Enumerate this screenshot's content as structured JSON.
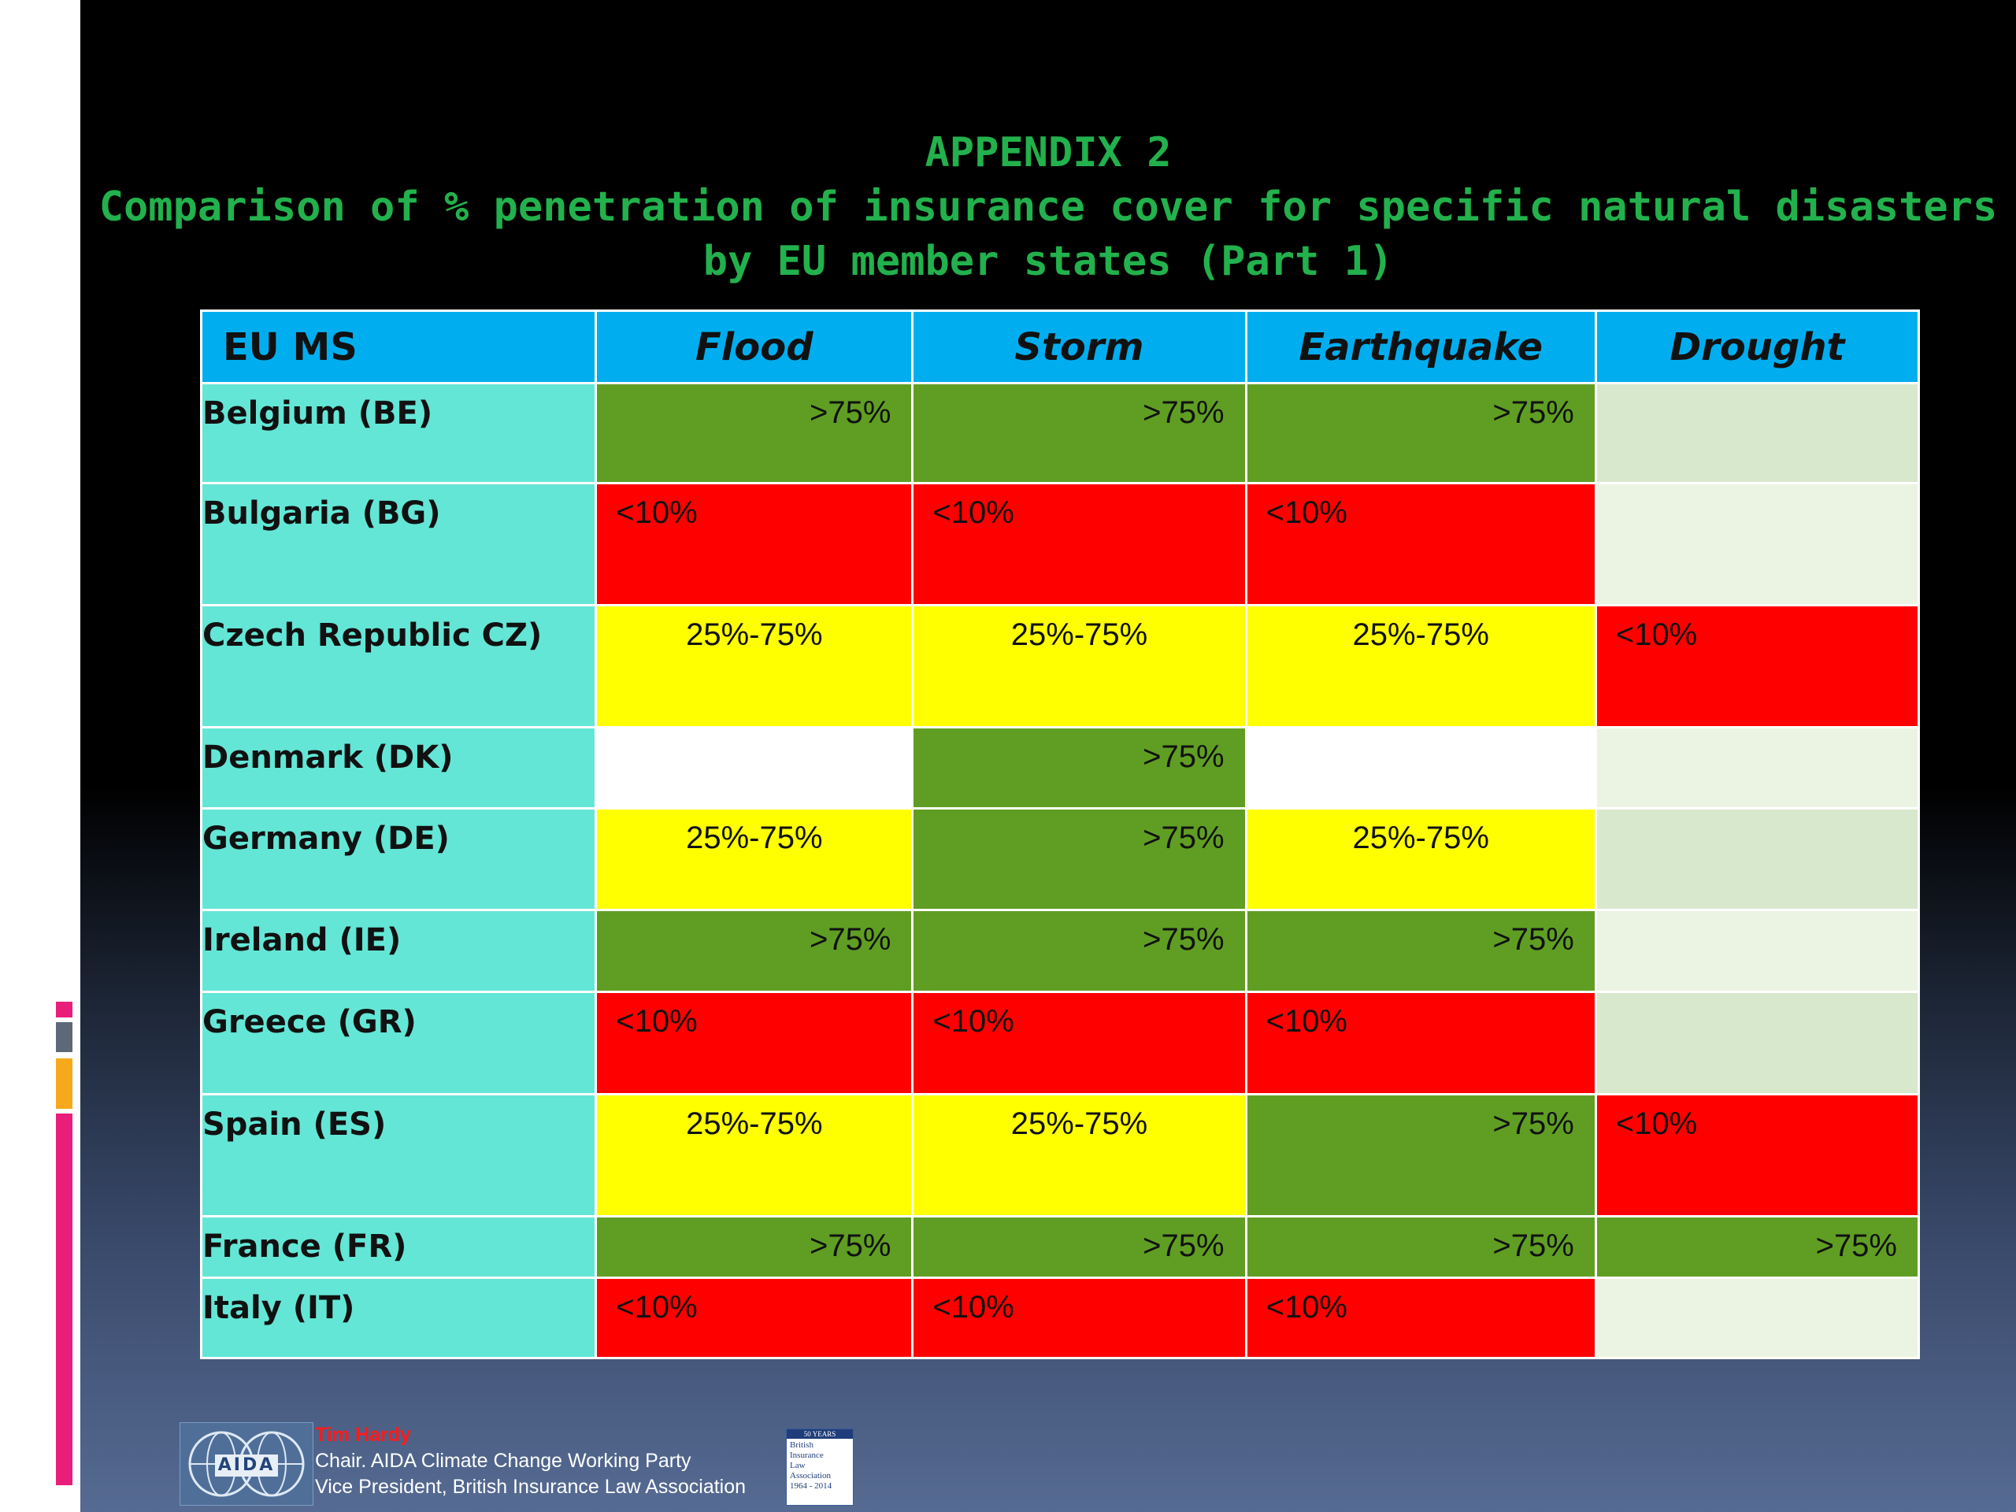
{
  "title": {
    "line1": "APPENDIX 2",
    "line2": "Comparison of % penetration of insurance cover for specific natural disasters",
    "line3": "by EU member states (Part 1)"
  },
  "colors": {
    "green": "#5f9e23",
    "red": "#ff0000",
    "yellow": "#ffff00",
    "header": "#00aeef",
    "country": "#63e6d6",
    "title": "#22b14c"
  },
  "table": {
    "headers": [
      "EU MS",
      "Flood",
      "Storm",
      "Earthquake",
      "Drought"
    ],
    "rows": [
      {
        "country": "Belgium  (BE)",
        "flood": ">75%",
        "storm": ">75%",
        "earthquake": ">75%",
        "drought": ""
      },
      {
        "country": "Bulgaria  (BG)",
        "flood": "<10%",
        "storm": "<10%",
        "earthquake": "<10%",
        "drought": ""
      },
      {
        "country": "Czech Republic CZ)",
        "flood": "25%-75%",
        "storm": "25%-75%",
        "earthquake": "25%-75%",
        "drought": "<10%"
      },
      {
        "country": "Denmark (DK)",
        "flood": "",
        "storm": ">75%",
        "earthquake": "",
        "drought": ""
      },
      {
        "country": "Germany (DE)",
        "flood": "25%-75%",
        "storm": ">75%",
        "earthquake": "25%-75%",
        "drought": ""
      },
      {
        "country": "Ireland (IE)",
        "flood": ">75%",
        "storm": ">75%",
        "earthquake": ">75%",
        "drought": ""
      },
      {
        "country": "Greece (GR)",
        "flood": "<10%",
        "storm": "<10%",
        "earthquake": "<10%",
        "drought": ""
      },
      {
        "country": "Spain  (ES)",
        "flood": "25%-75%",
        "storm": "25%-75%",
        "earthquake": ">75%",
        "drought": "<10%"
      },
      {
        "country": "France (FR)",
        "flood": ">75%",
        "storm": ">75%",
        "earthquake": ">75%",
        "drought": ">75%"
      },
      {
        "country": "Italy (IT)",
        "flood": "<10%",
        "storm": "<10%",
        "earthquake": "<10%",
        "drought": ""
      }
    ]
  },
  "footer": {
    "aida_logo_text": "AIDA",
    "name": "Tim Hardy",
    "line1": "Chair. AIDA Climate Change Working Party",
    "line2": "Vice President, British Insurance Law Association",
    "bila_logo": {
      "top": "50 YEARS",
      "lines": [
        "British",
        "Insurance",
        "Law",
        "Association",
        "1964 - 2014"
      ]
    }
  }
}
